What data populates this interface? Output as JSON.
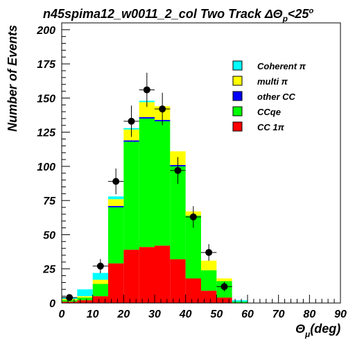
{
  "chart_data": {
    "type": "bar",
    "title": "n45spima12_w0011_2_col Two Track ΔΘ",
    "title_sub": "p",
    "title_tail": "<25",
    "title_sup": "o",
    "ylabel": "Number of Events",
    "xlabel_main": "Θ",
    "xlabel_sub": "μ",
    "xlabel_tail": "(deg)",
    "xlim": [
      0,
      90
    ],
    "ylim": [
      0,
      205
    ],
    "x_ticks": [
      0,
      10,
      20,
      30,
      40,
      50,
      60,
      70,
      80,
      90
    ],
    "y_ticks": [
      0,
      25,
      50,
      75,
      100,
      125,
      150,
      175,
      200
    ],
    "bin_edges": [
      0,
      5,
      10,
      15,
      20,
      25,
      30,
      35,
      40,
      45,
      50,
      55,
      60,
      65,
      70,
      75,
      80,
      85,
      90
    ],
    "stack_series": [
      {
        "name": "CC 1π",
        "color": "#ff0000",
        "values": [
          1,
          2,
          5,
          29,
          39,
          41,
          42,
          32,
          18,
          9,
          4,
          0,
          0,
          0,
          0,
          0,
          0,
          0
        ]
      },
      {
        "name": "CCqe",
        "color": "#00ff00",
        "values": [
          1,
          2,
          9,
          41,
          79,
          94,
          91,
          68,
          46,
          15,
          12,
          1,
          0,
          0,
          0,
          0,
          0,
          0
        ]
      },
      {
        "name": "other CC",
        "color": "#0000ff",
        "values": [
          0,
          0,
          0,
          1,
          1,
          1,
          1,
          1,
          0,
          0,
          0,
          0,
          0,
          0,
          0,
          0,
          0,
          0
        ]
      },
      {
        "name": "multi π",
        "color": "#ffff00",
        "values": [
          1,
          1,
          3,
          5,
          8,
          11,
          10,
          10,
          3,
          7,
          2,
          0,
          0,
          0,
          0,
          0,
          0,
          0
        ]
      },
      {
        "name": "Coherent π",
        "color": "#00ffff",
        "values": [
          1,
          5,
          5,
          2,
          1,
          1,
          0,
          0,
          0,
          0,
          0,
          1,
          0,
          0,
          0,
          0,
          0,
          0
        ]
      }
    ],
    "legend_order": [
      "Coherent π",
      "multi π",
      "other CC",
      "CCqe",
      "CC 1π"
    ],
    "legend_position": "top-right",
    "data_points": {
      "x": [
        2.5,
        12.5,
        17.5,
        22.5,
        27.5,
        32.5,
        37.5,
        42.5,
        47.5,
        52.5
      ],
      "y": [
        4,
        27,
        89,
        133,
        156,
        142,
        97,
        63,
        37,
        12
      ],
      "yerr": [
        2,
        5.2,
        9.4,
        11.5,
        12.5,
        11.9,
        9.8,
        7.9,
        6.1,
        3.5
      ]
    }
  }
}
